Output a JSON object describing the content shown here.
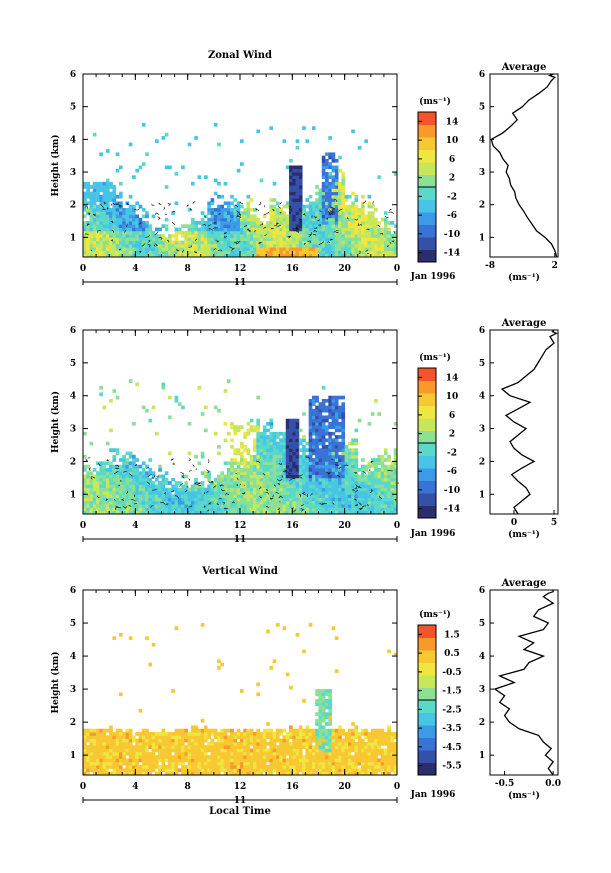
{
  "chart_data": [
    {
      "type": "heatmap",
      "title": "Zonal Wind",
      "ylabel": "Height (km)",
      "xlabel": "",
      "xlim": [
        0,
        24
      ],
      "ylim": [
        0.4,
        6
      ],
      "x_ticks": [
        "0",
        "4",
        "8",
        "12",
        "16",
        "20",
        "0"
      ],
      "y_ticks": [
        "1",
        "2",
        "3",
        "4",
        "5",
        "6"
      ],
      "day_label": "11",
      "date_label": "Jan 1996",
      "colorbar": {
        "unit": "(ms⁻¹)",
        "ticks": [
          "14",
          "10",
          "6",
          "2",
          "-2",
          "-6",
          "-10",
          "-14"
        ],
        "min": -16,
        "max": 16
      },
      "profile": {
        "title": "Average",
        "xlabel": "(ms⁻¹)",
        "x_ticks": [
          "-8",
          "2"
        ],
        "xlim": [
          -8,
          2.5
        ],
        "x": [
          2.3,
          2.0,
          1.5,
          0.5,
          -0.8,
          -1.5,
          -2.2,
          -2.8,
          -3.5,
          -4.0,
          -4.2,
          -4.8,
          -5.0,
          -5.5,
          -5.2,
          -6.0,
          -6.5,
          -7.5,
          -7.8,
          -6.0,
          -4.8,
          -3.8,
          -4.5,
          -3.0,
          -2.0,
          -0.5,
          0.8,
          1.5,
          2.0,
          1.2,
          1.8
        ],
        "y": [
          0.4,
          0.6,
          0.8,
          1.0,
          1.2,
          1.4,
          1.6,
          1.8,
          2.0,
          2.2,
          2.4,
          2.6,
          2.8,
          3.0,
          3.2,
          3.4,
          3.6,
          3.8,
          4.0,
          4.2,
          4.4,
          4.6,
          4.8,
          5.0,
          5.2,
          5.4,
          5.6,
          5.8,
          5.9,
          5.95,
          6.0
        ]
      }
    },
    {
      "type": "heatmap",
      "title": "Meridional Wind",
      "ylabel": "Height (km)",
      "xlabel": "",
      "xlim": [
        0,
        24
      ],
      "ylim": [
        0.4,
        6
      ],
      "x_ticks": [
        "0",
        "4",
        "8",
        "12",
        "16",
        "20",
        "0"
      ],
      "y_ticks": [
        "1",
        "2",
        "3",
        "4",
        "5",
        "6"
      ],
      "day_label": "11",
      "date_label": "Jan 1996",
      "colorbar": {
        "unit": "(ms⁻¹)",
        "ticks": [
          "14",
          "10",
          "6",
          "2",
          "-2",
          "-6",
          "-10",
          "-14"
        ],
        "min": -16,
        "max": 16
      },
      "profile": {
        "title": "Average",
        "xlabel": "(ms⁻¹)",
        "x_ticks": [
          "0",
          "5"
        ],
        "xlim": [
          -3,
          5.5
        ],
        "x": [
          0.5,
          0.0,
          1.0,
          2.0,
          1.5,
          0.5,
          -0.3,
          1.0,
          2.5,
          1.0,
          0.0,
          -0.5,
          0.5,
          1.5,
          0.0,
          -1.0,
          0.5,
          2.0,
          -0.5,
          -1.5,
          0.5,
          1.5,
          2.5,
          3.0,
          3.5,
          4.0,
          5.0,
          4.5,
          5.3,
          4.8,
          5.0
        ],
        "y": [
          0.4,
          0.6,
          0.8,
          1.0,
          1.2,
          1.4,
          1.6,
          1.8,
          2.0,
          2.2,
          2.4,
          2.6,
          2.8,
          3.0,
          3.2,
          3.4,
          3.6,
          3.8,
          4.0,
          4.2,
          4.4,
          4.6,
          4.8,
          5.0,
          5.2,
          5.4,
          5.6,
          5.8,
          5.9,
          5.95,
          6.0
        ]
      }
    },
    {
      "type": "heatmap",
      "title": "Vertical Wind",
      "ylabel": "Height (km)",
      "xlabel": "Local Time",
      "xlim": [
        0,
        24
      ],
      "ylim": [
        0.4,
        6
      ],
      "x_ticks": [
        "0",
        "4",
        "8",
        "12",
        "16",
        "20",
        "0"
      ],
      "y_ticks": [
        "1",
        "2",
        "3",
        "4",
        "5",
        "6"
      ],
      "day_label": "11",
      "date_label": "Jan 1996",
      "colorbar": {
        "unit": "(ms⁻¹)",
        "ticks": [
          "1.5",
          "0.5",
          "-0.5",
          "-1.5",
          "-2.5",
          "-3.5",
          "-4.5",
          "-5.5"
        ],
        "min": -6,
        "max": 2
      },
      "profile": {
        "title": "Average",
        "xlabel": "(ms⁻¹)",
        "x_ticks": [
          "-0.5",
          "0.0"
        ],
        "xlim": [
          -0.65,
          0.05
        ],
        "x": [
          0.0,
          -0.05,
          0.0,
          -0.08,
          -0.02,
          -0.1,
          -0.15,
          -0.35,
          -0.45,
          -0.5,
          -0.45,
          -0.55,
          -0.5,
          -0.6,
          -0.4,
          -0.55,
          -0.3,
          -0.25,
          -0.1,
          -0.3,
          -0.2,
          -0.35,
          -0.1,
          -0.05,
          -0.2,
          -0.15,
          0.0,
          -0.1,
          -0.05,
          0.0,
          0.0
        ],
        "y": [
          0.4,
          0.6,
          0.8,
          1.0,
          1.2,
          1.4,
          1.6,
          1.8,
          2.0,
          2.2,
          2.4,
          2.6,
          2.8,
          3.0,
          3.2,
          3.4,
          3.6,
          3.8,
          4.0,
          4.2,
          4.4,
          4.6,
          4.8,
          5.0,
          5.2,
          5.4,
          5.6,
          5.8,
          5.9,
          5.95,
          6.0
        ]
      }
    }
  ],
  "palette": [
    "#2b2e6e",
    "#3550a8",
    "#3a72d6",
    "#3c9be6",
    "#47c4e6",
    "#5ad8c8",
    "#8ce096",
    "#c8e65a",
    "#f0e640",
    "#f8c832",
    "#f89a2a",
    "#f0562a"
  ]
}
